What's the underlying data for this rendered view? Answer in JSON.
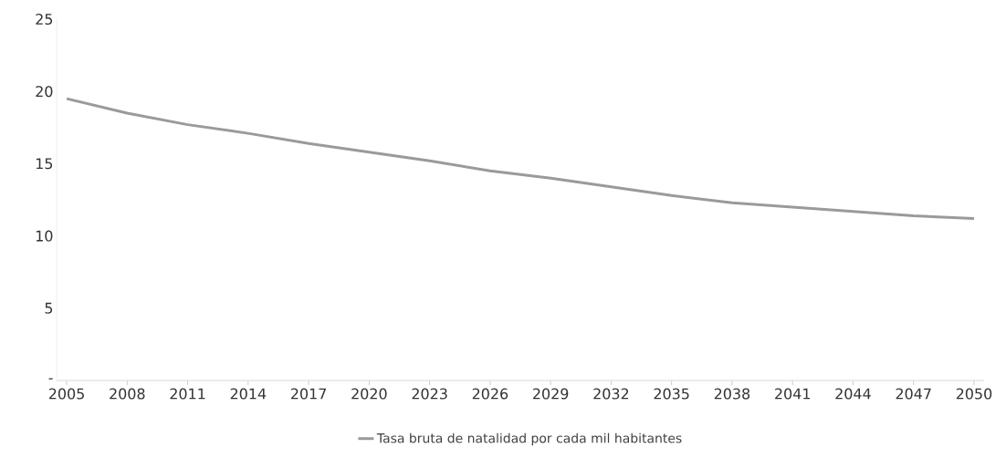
{
  "chart_data": {
    "type": "line",
    "x": [
      2005,
      2008,
      2011,
      2014,
      2017,
      2020,
      2023,
      2026,
      2029,
      2032,
      2035,
      2038,
      2041,
      2044,
      2047,
      2050
    ],
    "series": [
      {
        "name": "Tasa bruta de natalidad por cada mil habitantes",
        "color": "#9a9a9a",
        "values": [
          19.5,
          18.5,
          17.7,
          17.1,
          16.4,
          15.8,
          15.2,
          14.5,
          14.0,
          13.4,
          12.8,
          12.3,
          12.0,
          11.7,
          11.4,
          11.2
        ]
      }
    ],
    "xlim": [
      2004.5,
      2050.5
    ],
    "xticks": [
      2005,
      2008,
      2011,
      2014,
      2017,
      2020,
      2023,
      2026,
      2029,
      2032,
      2035,
      2038,
      2041,
      2044,
      2047,
      2050
    ],
    "ylim": [
      0,
      25
    ],
    "yticks": [
      {
        "value": 0,
        "label": "-"
      },
      5,
      10,
      15,
      20,
      25
    ],
    "grid": false,
    "legend": "bottom",
    "marker": "none",
    "line_style": "solid"
  }
}
